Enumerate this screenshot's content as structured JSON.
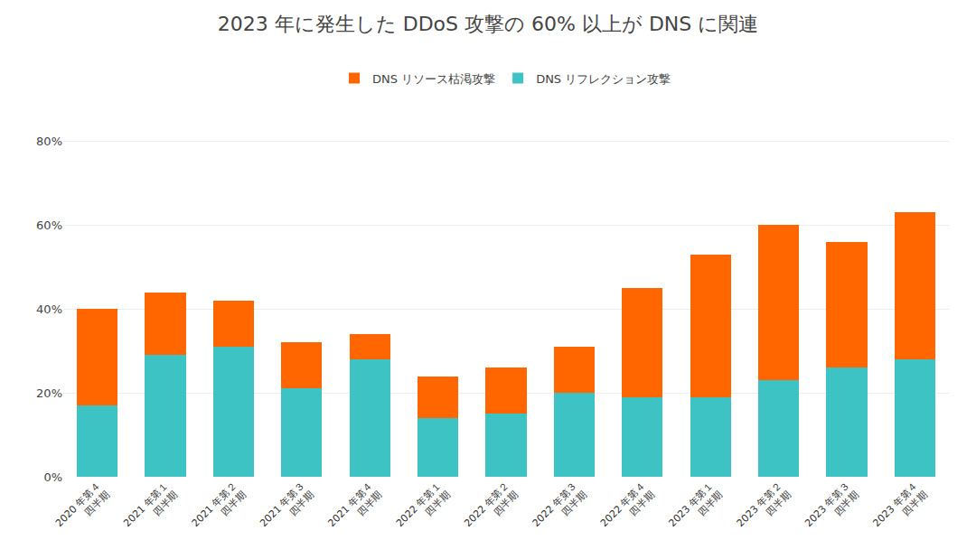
{
  "chart_data": {
    "type": "bar",
    "title": "2023 年に発生した DDoS 攻撃の 60% 以上が DNS に関連",
    "categories": [
      "2020 年第４\n四半期",
      "2021 年第１\n四半期",
      "2021 年第２\n四半期",
      "2021 年第３\n四半期",
      "2021 年第４\n四半期",
      "2022 年第１\n四半期",
      "2022 年第２\n四半期",
      "2022 年第３\n四半期",
      "2022 年第４\n四半期",
      "2023 年第１\n四半期",
      "2023 年第２\n四半期",
      "2023 年第３\n四半期",
      "2023 年第４\n四半期"
    ],
    "series": [
      {
        "name": "DNS リフレクション攻撃",
        "color": "#3DC3C3",
        "values": [
          17,
          29,
          31,
          21,
          28,
          14,
          15,
          20,
          19,
          19,
          23,
          26,
          28
        ]
      },
      {
        "name": "DNS リソース枯渇攻撃",
        "color": "#FF6600",
        "values": [
          23,
          15,
          11,
          11,
          6,
          10,
          11,
          11,
          26,
          34,
          37,
          30,
          35
        ]
      }
    ],
    "stacked": true,
    "ylim": [
      0,
      90
    ],
    "yticks": [
      {
        "value": 0,
        "label": "0%"
      },
      {
        "value": 20,
        "label": "20%"
      },
      {
        "value": 40,
        "label": "40%"
      },
      {
        "value": 60,
        "label": "60%"
      },
      {
        "value": 80,
        "label": "80%"
      }
    ],
    "grid": true,
    "legend": "top"
  }
}
